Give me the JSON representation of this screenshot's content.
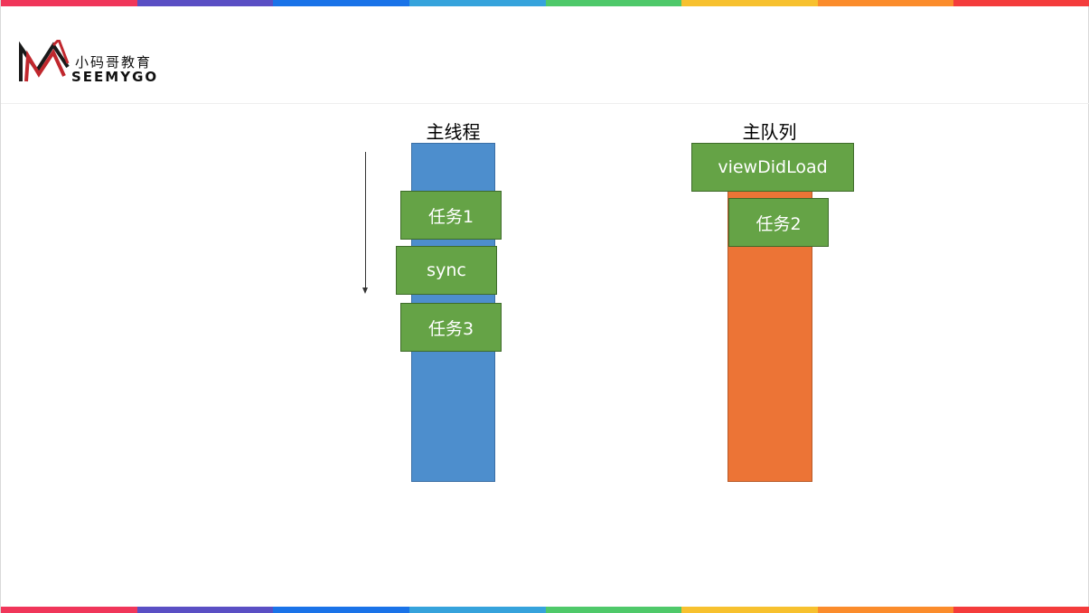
{
  "colors": {
    "stripe": [
      "#f0365a",
      "#5a4fc4",
      "#1a73e8",
      "#36a3dc",
      "#4fc96a",
      "#f7c12f",
      "#fb8c2c",
      "#f43c3c"
    ],
    "thread_bar": "#4d8ecd",
    "queue_bar": "#ec7436",
    "task_box": "#65a346"
  },
  "logo": {
    "cn": "小码哥教育",
    "en": "SEEMYGO",
    "icon": "seemygo-m-logo-icon"
  },
  "main_thread": {
    "title": "主线程",
    "tasks": [
      "任务1",
      "sync",
      "任务3"
    ]
  },
  "main_queue": {
    "title": "主队列",
    "tasks": [
      "viewDidLoad",
      "任务2"
    ]
  },
  "arrow": {
    "icon": "down-arrow-icon"
  }
}
